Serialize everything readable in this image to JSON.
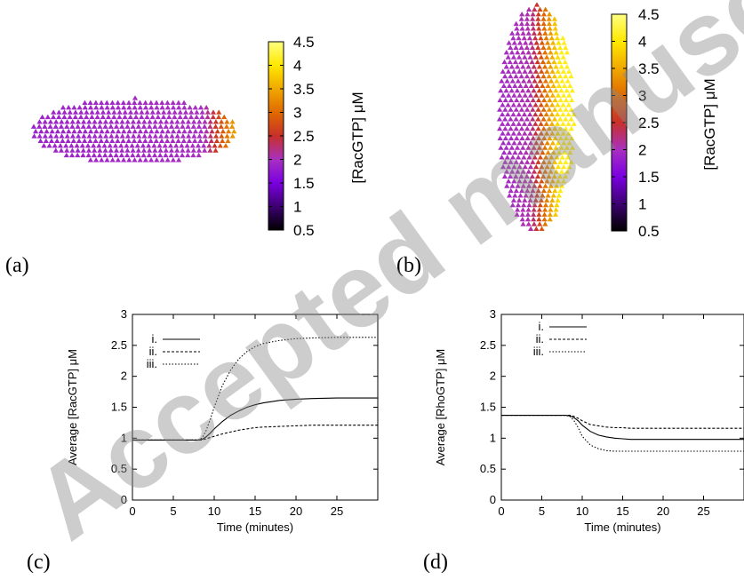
{
  "watermark": "Accepted manuscript",
  "panels": {
    "a": {
      "label": "(a)"
    },
    "b": {
      "label": "(b)"
    },
    "c": {
      "label": "(c)"
    },
    "d": {
      "label": "(d)"
    }
  },
  "colorbars": [
    {
      "label": "[RacGTP] μM",
      "ticks": [
        "0.5",
        "1",
        "1.5",
        "2",
        "2.5",
        "3",
        "3.5",
        "4",
        "4.5"
      ],
      "range": [
        0.5,
        4.5
      ],
      "colormap": [
        "#000000",
        "#3c0070",
        "#7a00e0",
        "#a830c0",
        "#c8302a",
        "#e06a00",
        "#f0a800",
        "#ffe800",
        "#ffff80"
      ]
    },
    {
      "label": "[RacGTP] μM",
      "ticks": [
        "0.5",
        "1",
        "1.5",
        "2",
        "2.5",
        "3",
        "3.5",
        "4",
        "4.5"
      ],
      "range": [
        0.5,
        4.5
      ],
      "colormap": [
        "#000000",
        "#3c0070",
        "#7a00e0",
        "#a830c0",
        "#c8302a",
        "#e06a00",
        "#f0a800",
        "#ffe800",
        "#ffff80"
      ]
    }
  ],
  "chart_data": [
    {
      "type": "line",
      "ylabel": "Average [RacGTP] μM",
      "xlabel": "Time (minutes)",
      "xlim": [
        0,
        30
      ],
      "ylim": [
        0,
        3
      ],
      "xticks": [
        "0",
        "5",
        "10",
        "15",
        "20",
        "25"
      ],
      "yticks": [
        "0",
        "0.5",
        "1",
        "1.5",
        "2",
        "2.5",
        "3"
      ],
      "x": [
        0,
        2,
        4,
        6,
        8,
        8.5,
        9,
        9.5,
        10,
        11,
        12,
        13,
        14,
        15,
        16,
        18,
        20,
        22,
        25,
        28,
        30
      ],
      "series": [
        {
          "name": "i.",
          "dash": "solid",
          "values": [
            0.97,
            0.97,
            0.97,
            0.97,
            0.97,
            0.98,
            1.02,
            1.08,
            1.15,
            1.27,
            1.37,
            1.44,
            1.5,
            1.54,
            1.57,
            1.61,
            1.63,
            1.64,
            1.65,
            1.65,
            1.65
          ]
        },
        {
          "name": "ii.",
          "dash": "dashed",
          "values": [
            0.97,
            0.97,
            0.97,
            0.97,
            0.97,
            0.97,
            0.99,
            1.01,
            1.03,
            1.07,
            1.1,
            1.13,
            1.15,
            1.17,
            1.18,
            1.19,
            1.2,
            1.21,
            1.21,
            1.21,
            1.21
          ]
        },
        {
          "name": "iii.",
          "dash": "dotted",
          "values": [
            0.97,
            0.97,
            0.97,
            0.97,
            0.97,
            1.0,
            1.12,
            1.3,
            1.5,
            1.85,
            2.1,
            2.28,
            2.4,
            2.48,
            2.53,
            2.58,
            2.61,
            2.62,
            2.63,
            2.63,
            2.63
          ]
        }
      ]
    },
    {
      "type": "line",
      "ylabel": "Average [RhoGTP] μM",
      "xlabel": "Time (minutes)",
      "xlim": [
        0,
        30
      ],
      "ylim": [
        0,
        3
      ],
      "xticks": [
        "0",
        "5",
        "10",
        "15",
        "20",
        "25"
      ],
      "yticks": [
        "0",
        "0.5",
        "1",
        "1.5",
        "2",
        "2.5",
        "3"
      ],
      "x": [
        0,
        2,
        4,
        6,
        8,
        8.5,
        9,
        9.5,
        10,
        11,
        12,
        13,
        14,
        15,
        16,
        18,
        20,
        22,
        25,
        28,
        30
      ],
      "series": [
        {
          "name": "i.",
          "dash": "solid",
          "values": [
            1.37,
            1.37,
            1.37,
            1.37,
            1.37,
            1.36,
            1.33,
            1.28,
            1.21,
            1.11,
            1.05,
            1.02,
            1.0,
            0.99,
            0.98,
            0.98,
            0.98,
            0.98,
            0.98,
            0.98,
            0.98
          ]
        },
        {
          "name": "ii.",
          "dash": "dashed",
          "values": [
            1.37,
            1.37,
            1.37,
            1.37,
            1.37,
            1.37,
            1.35,
            1.32,
            1.28,
            1.22,
            1.2,
            1.18,
            1.17,
            1.17,
            1.16,
            1.16,
            1.16,
            1.16,
            1.16,
            1.16,
            1.16
          ]
        },
        {
          "name": "iii.",
          "dash": "dotted",
          "values": [
            1.37,
            1.37,
            1.37,
            1.37,
            1.37,
            1.35,
            1.28,
            1.17,
            1.03,
            0.89,
            0.83,
            0.8,
            0.79,
            0.79,
            0.79,
            0.79,
            0.79,
            0.79,
            0.79,
            0.79,
            0.79
          ]
        }
      ]
    }
  ]
}
